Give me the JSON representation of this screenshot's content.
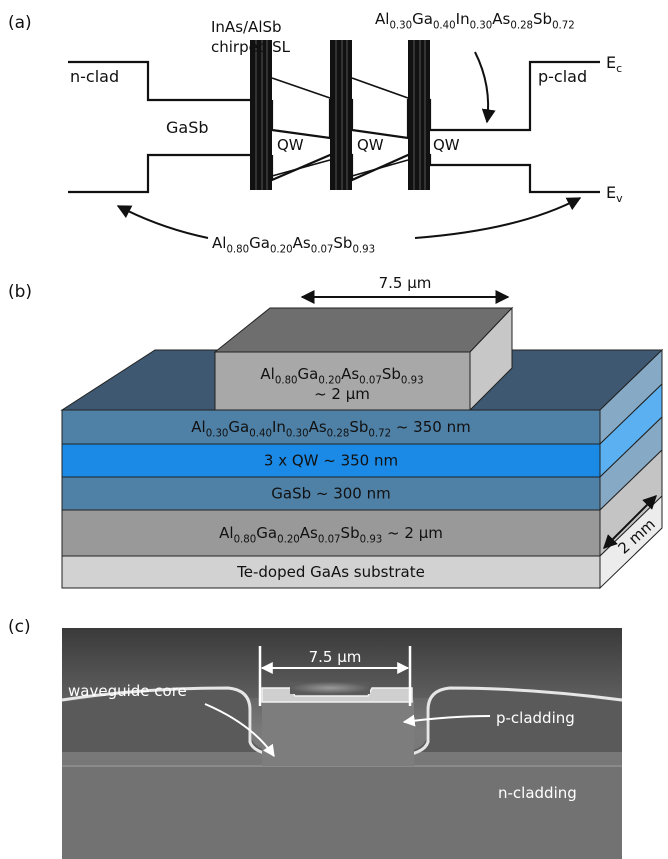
{
  "panel_a": {
    "label": "(a)",
    "n_clad": "n-clad",
    "p_clad": "p-clad",
    "gasb": "GaSb",
    "sl_line1": "InAs/AlSb",
    "sl_line2": "chirped SL",
    "qw1": "QW",
    "qw2": "QW",
    "qw3": "QW",
    "ec": {
      "main": "E",
      "sub": "c"
    },
    "ev": {
      "main": "E",
      "sub": "v"
    },
    "barrier_label": [
      {
        "t": "Al"
      },
      {
        "t": "0.30",
        "sub": true
      },
      {
        "t": "Ga"
      },
      {
        "t": "0.40",
        "sub": true
      },
      {
        "t": "In"
      },
      {
        "t": "0.30",
        "sub": true
      },
      {
        "t": "As"
      },
      {
        "t": "0.28",
        "sub": true
      },
      {
        "t": "Sb"
      },
      {
        "t": "0.72",
        "sub": true
      }
    ],
    "clad_label": [
      {
        "t": "Al"
      },
      {
        "t": "0.80",
        "sub": true
      },
      {
        "t": "Ga"
      },
      {
        "t": "0.20",
        "sub": true
      },
      {
        "t": "As"
      },
      {
        "t": "0.07",
        "sub": true
      },
      {
        "t": "Sb"
      },
      {
        "t": "0.93",
        "sub": true
      }
    ]
  },
  "panel_b": {
    "label": "(b)",
    "width_label": "7.5 μm",
    "depth_label": "2 mm",
    "ridge_label_line1": [
      {
        "t": "Al"
      },
      {
        "t": "0.80",
        "sub": true
      },
      {
        "t": "Ga"
      },
      {
        "t": "0.20",
        "sub": true
      },
      {
        "t": "As"
      },
      {
        "t": "0.07",
        "sub": true
      },
      {
        "t": "Sb"
      },
      {
        "t": "0.93",
        "sub": true
      }
    ],
    "ridge_label_line2": "~ 2 μm",
    "layers": [
      {
        "name": "layer-upper-barrier",
        "color": "#4f80a6",
        "side": "#86aac6",
        "parts": [
          {
            "t": "Al"
          },
          {
            "t": "0.30",
            "sub": true
          },
          {
            "t": "Ga"
          },
          {
            "t": "0.40",
            "sub": true
          },
          {
            "t": "In"
          },
          {
            "t": "0.30",
            "sub": true
          },
          {
            "t": "As"
          },
          {
            "t": "0.28",
            "sub": true
          },
          {
            "t": "Sb"
          },
          {
            "t": "0.72",
            "sub": true
          },
          {
            "t": " ~ 350 nm"
          }
        ]
      },
      {
        "name": "layer-qw",
        "color": "#1a8ae6",
        "side": "#5ab0f0",
        "parts": [
          {
            "t": "3 x QW ~ 350 nm"
          }
        ]
      },
      {
        "name": "layer-gasb",
        "color": "#4f80a6",
        "side": "#86aac6",
        "parts": [
          {
            "t": "GaSb ~ 300 nm"
          }
        ]
      },
      {
        "name": "layer-lower-clad",
        "color": "#999999",
        "side": "#c4c4c4",
        "parts": [
          {
            "t": "Al"
          },
          {
            "t": "0.80",
            "sub": true
          },
          {
            "t": "Ga"
          },
          {
            "t": "0.20",
            "sub": true
          },
          {
            "t": "As"
          },
          {
            "t": "0.07",
            "sub": true
          },
          {
            "t": "Sb"
          },
          {
            "t": "0.93",
            "sub": true
          },
          {
            "t": " ~ 2 μm"
          }
        ]
      },
      {
        "name": "layer-substrate",
        "color": "#d2d2d2",
        "side": "#ececec",
        "parts": [
          {
            "t": "Te-doped GaAs substrate"
          }
        ]
      }
    ]
  },
  "panel_c": {
    "label": "(c)",
    "width_label": "7.5 μm",
    "waveguide_core": "waveguide core",
    "p_cladding": "p-cladding",
    "n_cladding": "n-cladding"
  }
}
